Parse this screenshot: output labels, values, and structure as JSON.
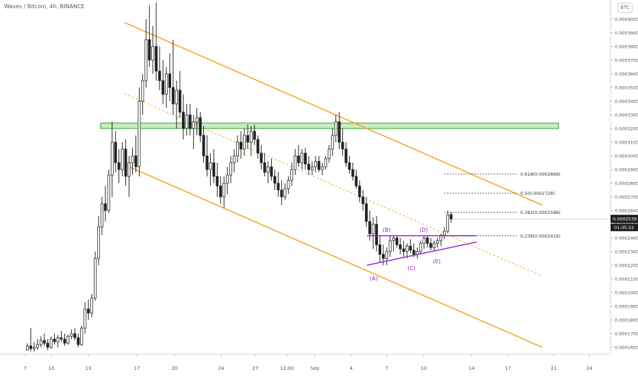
{
  "title": "Waves / Bitcoin, 4h, BINANCE",
  "currency_button": "BTC",
  "colors": {
    "up": "#222222",
    "down": "#222222",
    "channel": "#f5a623",
    "zone_fill": "#c8ecc0",
    "zone_stroke": "#2e9e2e",
    "triangle": "#9b1fd6",
    "fib": "#333333",
    "axis_text": "#555555"
  },
  "chart_data": {
    "type": "candlestick",
    "ylim": [
      0.000155,
      0.000414
    ],
    "y_ticks": [
      "0.0001600",
      "0.0001700",
      "0.0001800",
      "0.0001900",
      "0.0002000",
      "0.0002100",
      "0.0002200",
      "0.0002300",
      "0.0002400",
      "0.0002500",
      "0.0002600",
      "0.0002700",
      "0.0002800",
      "0.0002900",
      "0.0003000",
      "0.0003100",
      "0.0003200",
      "0.0003300",
      "0.0003400",
      "0.0003500",
      "0.0003600",
      "0.0003700",
      "0.0003800",
      "0.0003900",
      "0.0004000"
    ],
    "x_ticks": [
      "7",
      "10",
      "13",
      "17",
      "20",
      "24",
      "27",
      "12:00",
      "Sep",
      "4",
      "7",
      "10",
      "14",
      "17",
      "21",
      "24"
    ],
    "current_price": "0.0002539",
    "countdown": "01:35:22",
    "resistance_zone": [
      0.00032,
      0.000324
    ],
    "fib_levels": [
      {
        "label": "0.618(0.0002868)",
        "value": 0.0002868
      },
      {
        "label": "0.5(0.0002728)",
        "value": 0.0002728
      },
      {
        "label": "0.382(0.0002588)",
        "value": 0.0002588
      },
      {
        "label": "0.236(0.0002416)",
        "value": 0.0002416
      }
    ],
    "wave_labels": [
      "(A)",
      "(B)",
      "(C)",
      "(D)",
      "(E)"
    ],
    "candles": [
      [
        0.000158,
        0.000163,
        0.000159,
        0.000161
      ],
      [
        0.000161,
        0.000174,
        0.000157,
        0.000159
      ],
      [
        0.000159,
        0.000164,
        0.000157,
        0.00016
      ],
      [
        0.00016,
        0.000166,
        0.000158,
        0.000162
      ],
      [
        0.000162,
        0.000168,
        0.00016,
        0.000165
      ],
      [
        0.000165,
        0.00017,
        0.000161,
        0.000163
      ],
      [
        0.000163,
        0.000166,
        0.000158,
        0.00016
      ],
      [
        0.00016,
        0.000168,
        0.000159,
        0.000166
      ],
      [
        0.000166,
        0.00017,
        0.000162,
        0.000164
      ],
      [
        0.000164,
        0.000169,
        0.00016,
        0.000167
      ],
      [
        0.000167,
        0.000172,
        0.000164,
        0.000166
      ],
      [
        0.000166,
        0.00017,
        0.000161,
        0.000163
      ],
      [
        0.000163,
        0.000169,
        0.000162,
        0.000168
      ],
      [
        0.000168,
        0.000173,
        0.000166,
        0.00017
      ],
      [
        0.00017,
        0.000174,
        0.000165,
        0.000167
      ],
      [
        0.000167,
        0.00017,
        0.00016,
        0.000162
      ],
      [
        0.000162,
        0.000176,
        0.000161,
        0.000174
      ],
      [
        0.000174,
        0.000193,
        0.00017,
        0.000188
      ],
      [
        0.000188,
        0.000195,
        0.00018,
        0.000185
      ],
      [
        0.000185,
        0.000199,
        0.000182,
        0.000196
      ],
      [
        0.000196,
        0.00023,
        0.000194,
        0.000225
      ],
      [
        0.000225,
        0.000256,
        0.00022,
        0.000248
      ],
      [
        0.000248,
        0.00027,
        0.000242,
        0.000265
      ],
      [
        0.000265,
        0.000278,
        0.000252,
        0.00026
      ],
      [
        0.00026,
        0.00029,
        0.000258,
        0.000286
      ],
      [
        0.000286,
        0.000325,
        0.00027,
        0.00031
      ],
      [
        0.00031,
        0.000318,
        0.000288,
        0.000295
      ],
      [
        0.000295,
        0.000305,
        0.00028,
        0.00029
      ],
      [
        0.00029,
        0.00031,
        0.000285,
        0.000305
      ],
      [
        0.000305,
        0.000312,
        0.000278,
        0.000285
      ],
      [
        0.000285,
        0.0003,
        0.00027,
        0.000295
      ],
      [
        0.000295,
        0.000306,
        0.000286,
        0.0003
      ],
      [
        0.0003,
        0.000315,
        0.000288,
        0.000292
      ],
      [
        0.000292,
        0.00035,
        0.000285,
        0.00034
      ],
      [
        0.00034,
        0.00036,
        0.00033,
        0.000355
      ],
      [
        0.000355,
        0.0004,
        0.00035,
        0.000385
      ],
      [
        0.000385,
        0.00041,
        0.000365,
        0.00037
      ],
      [
        0.00037,
        0.000395,
        0.00036,
        0.00038
      ],
      [
        0.00038,
        0.000412,
        0.000355,
        0.000362
      ],
      [
        0.000362,
        0.00038,
        0.000348,
        0.000355
      ],
      [
        0.000355,
        0.00037,
        0.000338,
        0.000345
      ],
      [
        0.000345,
        0.000365,
        0.000335,
        0.00036
      ],
      [
        0.00036,
        0.000375,
        0.00034,
        0.00035
      ],
      [
        0.00035,
        0.000385,
        0.00033,
        0.000338
      ],
      [
        0.000338,
        0.000355,
        0.00032,
        0.000348
      ],
      [
        0.000348,
        0.000362,
        0.000328,
        0.000332
      ],
      [
        0.000332,
        0.000345,
        0.000312,
        0.00032
      ],
      [
        0.00032,
        0.000338,
        0.000315,
        0.00033
      ],
      [
        0.00033,
        0.000338,
        0.000315,
        0.00032
      ],
      [
        0.00032,
        0.00033,
        0.000305,
        0.000325
      ],
      [
        0.000325,
        0.000335,
        0.000315,
        0.000328
      ],
      [
        0.000328,
        0.000332,
        0.00031,
        0.000315
      ],
      [
        0.000315,
        0.000322,
        0.000295,
        0.0003
      ],
      [
        0.0003,
        0.000315,
        0.000285,
        0.00029
      ],
      [
        0.00029,
        0.000302,
        0.000278,
        0.000295
      ],
      [
        0.000295,
        0.000305,
        0.00028,
        0.000285
      ],
      [
        0.000285,
        0.000295,
        0.00027,
        0.000278
      ],
      [
        0.000278,
        0.000285,
        0.000265,
        0.00027
      ],
      [
        0.00027,
        0.000285,
        0.000262,
        0.00028
      ],
      [
        0.00028,
        0.000292,
        0.000272,
        0.000286
      ],
      [
        0.000286,
        0.0003,
        0.00028,
        0.000295
      ],
      [
        0.000295,
        0.000305,
        0.000288,
        0.0003
      ],
      [
        0.0003,
        0.000315,
        0.000295,
        0.00031
      ],
      [
        0.00031,
        0.000318,
        0.000298,
        0.000305
      ],
      [
        0.000305,
        0.00032,
        0.0003,
        0.000315
      ],
      [
        0.000315,
        0.000323,
        0.000305,
        0.00031
      ],
      [
        0.00031,
        0.000322,
        0.0003,
        0.000318
      ],
      [
        0.000318,
        0.000323,
        0.000308,
        0.000312
      ],
      [
        0.000312,
        0.000315,
        0.000298,
        0.000302
      ],
      [
        0.000302,
        0.000308,
        0.00029,
        0.000295
      ],
      [
        0.000295,
        0.000302,
        0.000285,
        0.000288
      ],
      [
        0.000288,
        0.000296,
        0.00028,
        0.000292
      ],
      [
        0.000292,
        0.000298,
        0.000282,
        0.000285
      ],
      [
        0.000285,
        0.00029,
        0.000275,
        0.00028
      ],
      [
        0.00028,
        0.000288,
        0.00027,
        0.000275
      ],
      [
        0.000275,
        0.000282,
        0.000264,
        0.00027
      ],
      [
        0.00027,
        0.00028,
        0.000268,
        0.000276
      ],
      [
        0.000276,
        0.000285,
        0.000272,
        0.000282
      ],
      [
        0.000282,
        0.000295,
        0.000278,
        0.00029
      ],
      [
        0.00029,
        0.000305,
        0.000286,
        0.0003
      ],
      [
        0.0003,
        0.000308,
        0.000292,
        0.000295
      ],
      [
        0.000295,
        0.000305,
        0.00029,
        0.000302
      ],
      [
        0.000302,
        0.000306,
        0.00029,
        0.000294
      ],
      [
        0.000294,
        0.0003,
        0.000286,
        0.00029
      ],
      [
        0.00029,
        0.000296,
        0.000286,
        0.000292
      ],
      [
        0.000292,
        0.0003,
        0.000288,
        0.000296
      ],
      [
        0.000296,
        0.0003,
        0.000288,
        0.00029
      ],
      [
        0.00029,
        0.000295,
        0.000286,
        0.000292
      ],
      [
        0.000292,
        0.0003,
        0.00029,
        0.000298
      ],
      [
        0.000298,
        0.000308,
        0.000295,
        0.000305
      ],
      [
        0.000305,
        0.00032,
        0.0003,
        0.000315
      ],
      [
        0.000315,
        0.00033,
        0.00031,
        0.000325
      ],
      [
        0.000325,
        0.000332,
        0.000305,
        0.00031
      ],
      [
        0.00031,
        0.00032,
        0.0003,
        0.000305
      ],
      [
        0.000305,
        0.00031,
        0.000292,
        0.000295
      ],
      [
        0.000295,
        0.0003,
        0.000287,
        0.00029
      ],
      [
        0.00029,
        0.000295,
        0.000282,
        0.000285
      ],
      [
        0.000285,
        0.00029,
        0.000276,
        0.000278
      ],
      [
        0.000278,
        0.000282,
        0.000266,
        0.00027
      ],
      [
        0.00027,
        0.000275,
        0.00026,
        0.000265
      ],
      [
        0.000265,
        0.00027,
        0.000248,
        0.000252
      ],
      [
        0.000252,
        0.00026,
        0.000238,
        0.000243
      ],
      [
        0.000243,
        0.000255,
        0.000232,
        0.00025
      ],
      [
        0.00025,
        0.000256,
        0.00023,
        0.000235
      ],
      [
        0.000235,
        0.000242,
        0.000222,
        0.000228
      ],
      [
        0.000228,
        0.000235,
        0.00022,
        0.000225
      ],
      [
        0.000225,
        0.000233,
        0.00022,
        0.00023
      ],
      [
        0.00023,
        0.000242,
        0.000226,
        0.000238
      ],
      [
        0.000238,
        0.000242,
        0.00023,
        0.00024
      ],
      [
        0.00024,
        0.000242,
        0.000233,
        0.000235
      ],
      [
        0.000235,
        0.00024,
        0.000228,
        0.000232
      ],
      [
        0.000232,
        0.000238,
        0.000226,
        0.00023
      ],
      [
        0.00023,
        0.000236,
        0.000225,
        0.000234
      ],
      [
        0.000234,
        0.000239,
        0.000229,
        0.000231
      ],
      [
        0.000231,
        0.000236,
        0.000226,
        0.000228
      ],
      [
        0.000228,
        0.000233,
        0.000225,
        0.00023
      ],
      [
        0.00023,
        0.000238,
        0.000228,
        0.000236
      ],
      [
        0.000236,
        0.000242,
        0.000232,
        0.00024
      ],
      [
        0.00024,
        0.000242,
        0.000233,
        0.000236
      ],
      [
        0.000236,
        0.00024,
        0.000231,
        0.000233
      ],
      [
        0.000233,
        0.000238,
        0.00023,
        0.000236
      ],
      [
        0.000236,
        0.00024,
        0.000233,
        0.000238
      ],
      [
        0.000238,
        0.000243,
        0.000234,
        0.000242
      ],
      [
        0.000242,
        0.000248,
        0.000239,
        0.000245
      ],
      [
        0.000245,
        0.00026,
        0.000243,
        0.000257
      ],
      [
        0.000257,
        0.000259,
        0.000251,
        0.0002539
      ]
    ]
  }
}
